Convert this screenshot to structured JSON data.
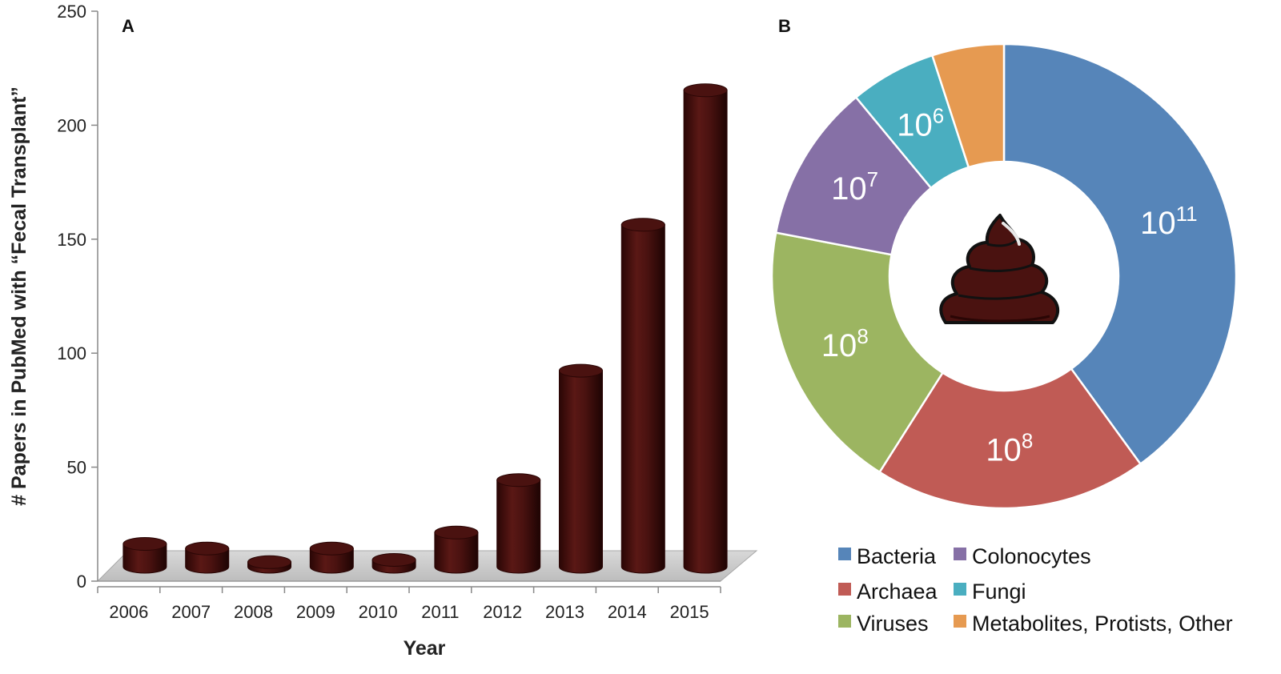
{
  "chart_data": [
    {
      "type": "bar",
      "panel_label": "A",
      "categories": [
        "2006",
        "2007",
        "2008",
        "2009",
        "2010",
        "2011",
        "2012",
        "2013",
        "2014",
        "2015"
      ],
      "values": [
        10,
        8,
        2,
        8,
        3,
        15,
        38,
        86,
        150,
        209
      ],
      "ylabel": "# Papers in PubMed with “Fecal Transplant”",
      "xlabel": "Year",
      "ylim": [
        0,
        250
      ],
      "yticks": [
        0,
        50,
        100,
        150,
        200,
        250
      ],
      "bar_color": "#4a1210",
      "grid": false
    },
    {
      "type": "pie",
      "style": "donut",
      "panel_label": "B",
      "slices": [
        {
          "name": "Bacteria",
          "label_base": "10",
          "label_exp": "11",
          "fraction": 0.4,
          "color": "#5685b9"
        },
        {
          "name": "Archaea",
          "label_base": "10",
          "label_exp": "8",
          "fraction": 0.19,
          "color": "#c05b55"
        },
        {
          "name": "Viruses",
          "label_base": "10",
          "label_exp": "8",
          "fraction": 0.19,
          "color": "#9cb561"
        },
        {
          "name": "Colonocytes",
          "label_base": "10",
          "label_exp": "7",
          "fraction": 0.11,
          "color": "#8670a6"
        },
        {
          "name": "Fungi",
          "label_base": "10",
          "label_exp": "6",
          "fraction": 0.06,
          "color": "#4aaec0"
        },
        {
          "name": "Metabolites, Protists, Other",
          "label_base": "",
          "label_exp": "",
          "fraction": 0.05,
          "color": "#e69a51"
        }
      ],
      "center_icon": "poop-icon",
      "legend_placement": "bottom"
    }
  ]
}
